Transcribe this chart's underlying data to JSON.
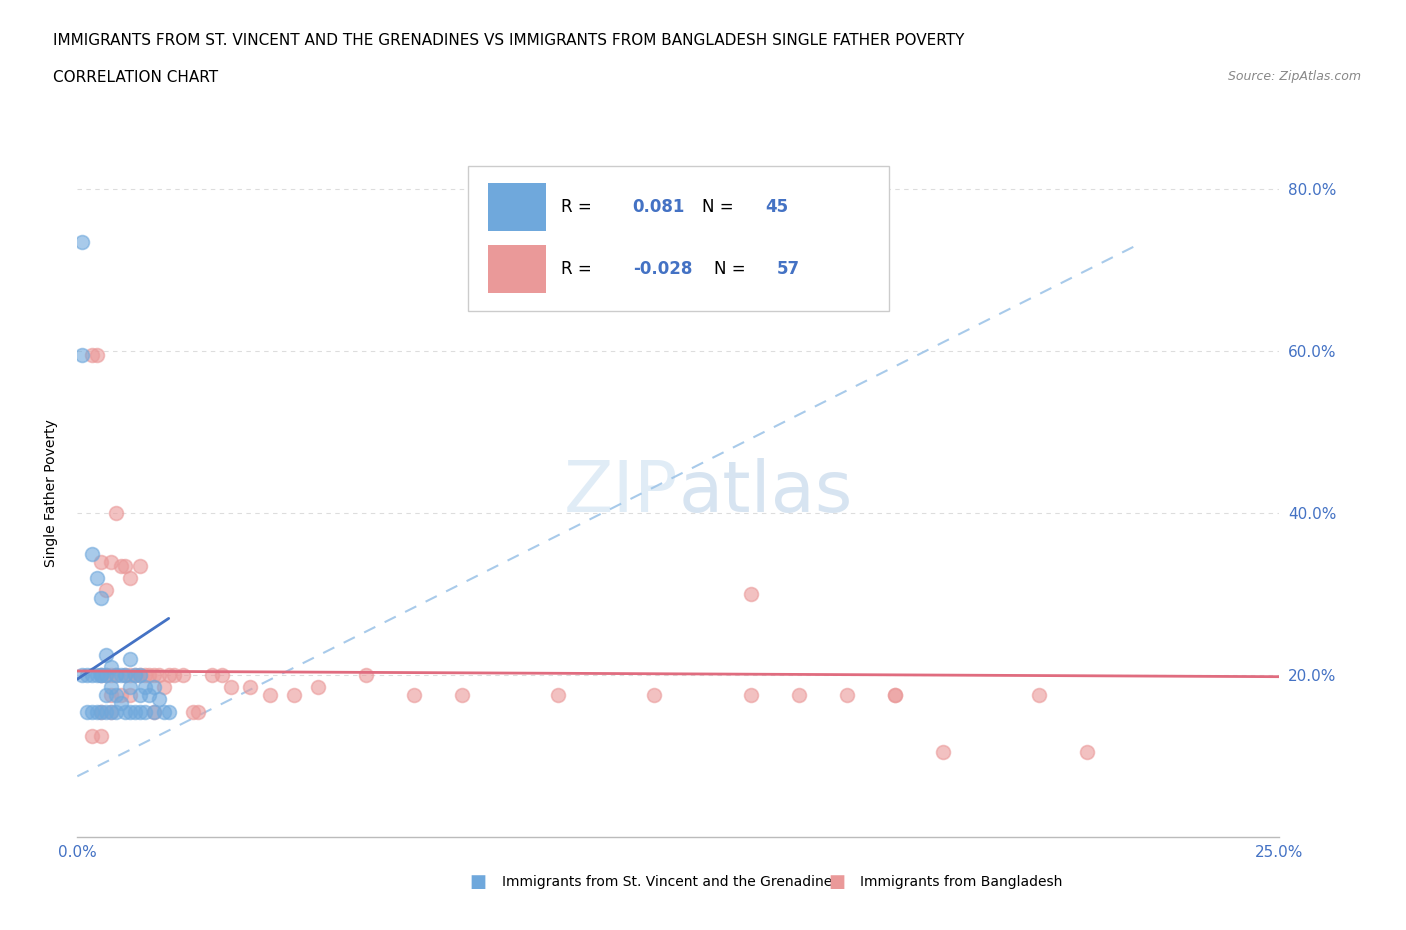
{
  "title_line1": "IMMIGRANTS FROM ST. VINCENT AND THE GRENADINES VS IMMIGRANTS FROM BANGLADESH SINGLE FATHER POVERTY",
  "title_line2": "CORRELATION CHART",
  "source_text": "Source: ZipAtlas.com",
  "ylabel": "Single Father Poverty",
  "watermark_text": "ZIPatlas",
  "xlim": [
    0.0,
    0.25
  ],
  "ylim": [
    0.0,
    0.85
  ],
  "color_blue": "#6fa8dc",
  "color_pink": "#ea9999",
  "color_blue_line": "#4472c4",
  "color_pink_line": "#e06c9f",
  "color_dash": "#9fc5e8",
  "R1": "0.081",
  "N1": "45",
  "R2": "-0.028",
  "N2": "57",
  "legend_label1": "Immigrants from St. Vincent and the Grenadines",
  "legend_label2": "Immigrants from Bangladesh",
  "bg_color": "#ffffff",
  "grid_color": "#dddddd",
  "tick_color": "#4472c4",
  "blue_x": [
    0.001,
    0.001,
    0.002,
    0.002,
    0.003,
    0.003,
    0.003,
    0.004,
    0.004,
    0.004,
    0.005,
    0.005,
    0.005,
    0.005,
    0.006,
    0.006,
    0.006,
    0.006,
    0.007,
    0.007,
    0.007,
    0.008,
    0.008,
    0.008,
    0.009,
    0.009,
    0.01,
    0.01,
    0.011,
    0.011,
    0.011,
    0.012,
    0.012,
    0.013,
    0.013,
    0.013,
    0.014,
    0.014,
    0.015,
    0.016,
    0.016,
    0.017,
    0.018,
    0.019,
    0.001
  ],
  "blue_y": [
    0.735,
    0.2,
    0.2,
    0.155,
    0.35,
    0.2,
    0.155,
    0.32,
    0.2,
    0.155,
    0.2,
    0.295,
    0.2,
    0.155,
    0.225,
    0.2,
    0.175,
    0.155,
    0.21,
    0.185,
    0.155,
    0.2,
    0.175,
    0.155,
    0.2,
    0.165,
    0.2,
    0.155,
    0.22,
    0.185,
    0.155,
    0.2,
    0.155,
    0.2,
    0.175,
    0.155,
    0.185,
    0.155,
    0.175,
    0.185,
    0.155,
    0.17,
    0.155,
    0.155,
    0.595
  ],
  "pink_x": [
    0.003,
    0.004,
    0.005,
    0.005,
    0.005,
    0.006,
    0.006,
    0.007,
    0.007,
    0.007,
    0.008,
    0.008,
    0.009,
    0.01,
    0.01,
    0.011,
    0.011,
    0.012,
    0.013,
    0.013,
    0.014,
    0.015,
    0.016,
    0.016,
    0.017,
    0.018,
    0.019,
    0.02,
    0.022,
    0.024,
    0.025,
    0.028,
    0.03,
    0.032,
    0.036,
    0.04,
    0.045,
    0.05,
    0.06,
    0.07,
    0.08,
    0.1,
    0.12,
    0.14,
    0.15,
    0.16,
    0.17,
    0.18,
    0.2,
    0.21,
    0.14,
    0.17,
    0.003,
    0.005,
    0.007,
    0.009,
    0.011
  ],
  "pink_y": [
    0.595,
    0.595,
    0.34,
    0.2,
    0.155,
    0.305,
    0.2,
    0.34,
    0.2,
    0.155,
    0.4,
    0.2,
    0.335,
    0.2,
    0.335,
    0.32,
    0.2,
    0.2,
    0.335,
    0.2,
    0.2,
    0.2,
    0.2,
    0.155,
    0.2,
    0.185,
    0.2,
    0.2,
    0.2,
    0.155,
    0.155,
    0.2,
    0.2,
    0.185,
    0.185,
    0.175,
    0.175,
    0.185,
    0.2,
    0.175,
    0.175,
    0.175,
    0.175,
    0.3,
    0.175,
    0.175,
    0.175,
    0.105,
    0.175,
    0.105,
    0.175,
    0.175,
    0.125,
    0.125,
    0.175,
    0.175,
    0.175
  ],
  "blue_trend_x": [
    0.0,
    0.019
  ],
  "blue_trend_y": [
    0.195,
    0.27
  ],
  "pink_trend_x": [
    0.0,
    0.25
  ],
  "pink_trend_y": [
    0.205,
    0.198
  ],
  "dash_line_x": [
    0.0,
    0.22
  ],
  "dash_line_y": [
    0.075,
    0.73
  ]
}
